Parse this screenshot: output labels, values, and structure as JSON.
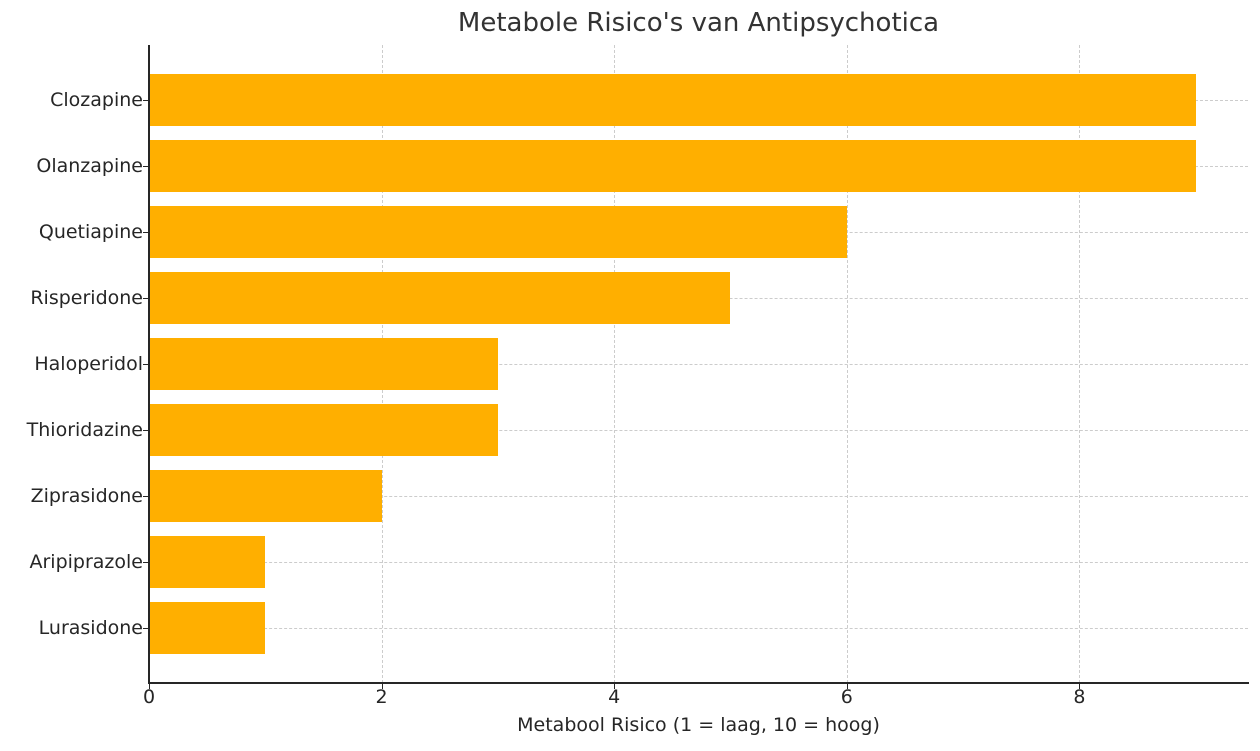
{
  "chart_data": {
    "type": "bar",
    "orientation": "horizontal",
    "title": "Metabole Risico's van Antipsychotica",
    "xlabel": "Metabool Risico (1 = laag, 10 = hoog)",
    "ylabel": "",
    "categories": [
      "Clozapine",
      "Olanzapine",
      "Quetiapine",
      "Risperidone",
      "Haloperidol",
      "Thioridazine",
      "Ziprasidone",
      "Aripiprazole",
      "Lurasidone"
    ],
    "values": [
      9,
      9,
      6,
      5,
      3,
      3,
      2,
      1,
      1
    ],
    "xlim": [
      0,
      9.45
    ],
    "xticks": [
      "0",
      "2",
      "4",
      "6",
      "8"
    ],
    "grid": true,
    "bar_color": "#ffaf00",
    "legend": null
  }
}
